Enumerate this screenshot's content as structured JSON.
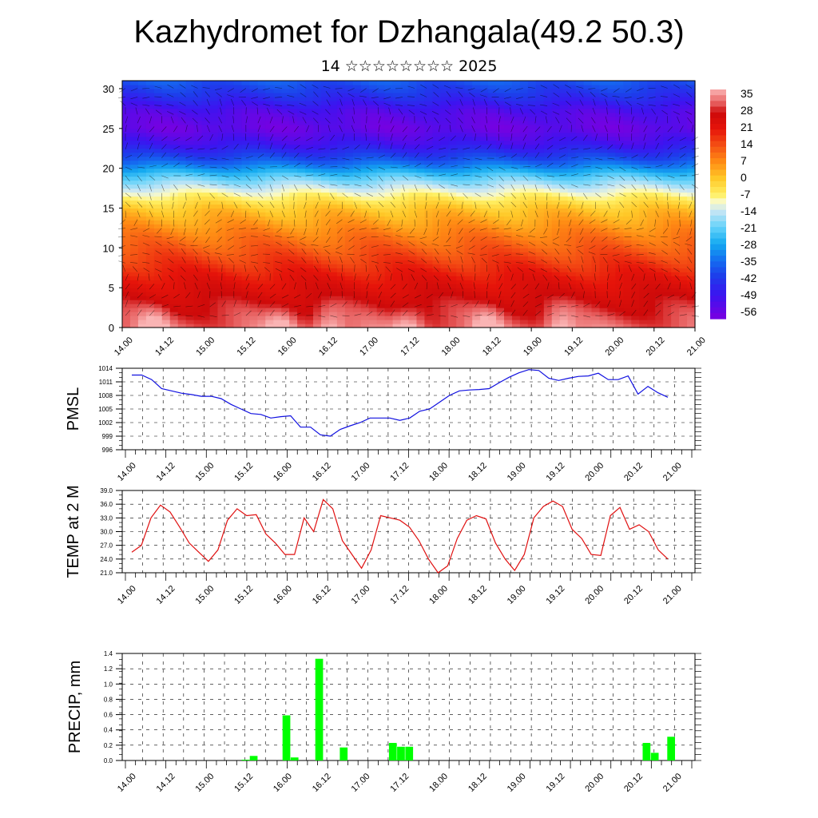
{
  "title": "Kazhydromet for Dzhangala(49.2 50.3)",
  "subtitle": "14 ☆☆☆☆☆☆☆☆ 2025",
  "chart_data": [
    {
      "type": "heatmap",
      "ylim": [
        0,
        31
      ],
      "yticks": [
        "0",
        "5",
        "10",
        "15",
        "20",
        "25",
        "30"
      ],
      "xtick_labels": [
        "14.00",
        "14.12",
        "15.00",
        "15.12",
        "16.00",
        "16.12",
        "17.00",
        "17.12",
        "18.00",
        "18.12",
        "19.00",
        "19.12",
        "20.00",
        "20.12",
        "21.00"
      ],
      "colorbar_labels": [
        "35",
        "28",
        "21",
        "14",
        "7",
        "0",
        "-7",
        "-14",
        "-21",
        "-28",
        "-35",
        "-42",
        "-49",
        "-56"
      ],
      "value_range": [
        -60,
        38
      ],
      "profile_levels": [
        0,
        3,
        6,
        9,
        12,
        15,
        17,
        19,
        21,
        23,
        25,
        27,
        29,
        31
      ],
      "profile_values": [
        33,
        28,
        22,
        15,
        8,
        0,
        -10,
        -22,
        -38,
        -50,
        -57,
        -54,
        -45,
        -38
      ],
      "warm_spots_x": [
        3.5,
        19.5,
        25.5,
        35.5,
        45.5,
        54.5
      ]
    },
    {
      "type": "line",
      "ylabel": "PMSL",
      "ylim": [
        996,
        1014
      ],
      "yticks": [
        "1014",
        "1011",
        "1008",
        "1005",
        "1002",
        "999",
        "996"
      ],
      "xtick_labels": [
        "14.00",
        "14.12",
        "15.00",
        "15.12",
        "16.00",
        "16.12",
        "17.00",
        "17.12",
        "18.00",
        "18.12",
        "19.00",
        "19.12",
        "20.00",
        "20.12",
        "21.00"
      ],
      "series": [
        {
          "color": "#1010e0",
          "values": [
            1012.5,
            1012.5,
            1011.5,
            1009.5,
            1009.0,
            1008.5,
            1008.2,
            1007.8,
            1007.8,
            1007.3,
            1006.0,
            1005.0,
            1004.0,
            1003.8,
            1003.0,
            1003.3,
            1003.5,
            1001.0,
            1001.0,
            999.3,
            999.0,
            1000.5,
            1001.3,
            1002.0,
            1003.0,
            1003.0,
            1003.0,
            1002.5,
            1003.0,
            1004.5,
            1005.0,
            1006.5,
            1008.0,
            1009.0,
            1009.2,
            1009.3,
            1009.5,
            1010.8,
            1012.0,
            1013.0,
            1013.7,
            1013.5,
            1011.8,
            1011.3,
            1011.8,
            1012.2,
            1012.3,
            1012.9,
            1011.5,
            1011.5,
            1012.3,
            1008.3,
            1010.0,
            1008.6,
            1007.6
          ]
        }
      ]
    },
    {
      "type": "line",
      "ylabel": "TEMP at 2 M",
      "ylim": [
        21,
        39
      ],
      "yticks": [
        "39.0",
        "36.0",
        "33.0",
        "30.0",
        "27.0",
        "24.0",
        "21.0"
      ],
      "xtick_labels": [
        "14.00",
        "14.12",
        "15.00",
        "15.12",
        "16.00",
        "16.12",
        "17.00",
        "17.12",
        "18.00",
        "18.12",
        "19.00",
        "19.12",
        "20.00",
        "20.12",
        "21.00"
      ],
      "series": [
        {
          "color": "#e01010",
          "values": [
            25.5,
            27.0,
            33.0,
            35.8,
            34.3,
            31.0,
            27.5,
            25.5,
            23.5,
            26.0,
            32.5,
            35.0,
            33.5,
            33.7,
            29.5,
            27.5,
            25.0,
            25.0,
            33.0,
            30.0,
            37.0,
            35.0,
            28.0,
            25.0,
            22.0,
            26.0,
            33.5,
            33.0,
            32.5,
            31.0,
            28.0,
            24.0,
            21.0,
            22.5,
            28.5,
            32.5,
            33.5,
            32.8,
            27.5,
            24.0,
            21.5,
            25.0,
            33.0,
            35.5,
            36.7,
            35.5,
            30.5,
            28.5,
            25.0,
            24.8,
            33.5,
            35.3,
            30.5,
            31.5,
            30.0,
            26.0,
            24.0
          ]
        }
      ]
    },
    {
      "type": "bar",
      "ylabel": "PRECIP, mm",
      "ylim": [
        0,
        1.4
      ],
      "yticks": [
        "1.4",
        "1.2",
        "1.0",
        "0.8",
        "0.6",
        "0.4",
        "0.2",
        "0.0"
      ],
      "xtick_labels": [
        "14.00",
        "14.12",
        "15.00",
        "15.12",
        "16.00",
        "16.12",
        "17.00",
        "17.12",
        "18.00",
        "18.12",
        "19.00",
        "19.12",
        "20.00",
        "20.12",
        "21.00"
      ],
      "bar_color": "#00ff00",
      "bars": [
        [
          14,
          0.01
        ],
        [
          15,
          0.06
        ],
        [
          19,
          0.59
        ],
        [
          20,
          0.04
        ],
        [
          23,
          1.33
        ],
        [
          26,
          0.17
        ],
        [
          32,
          0.23
        ],
        [
          33,
          0.18
        ],
        [
          34,
          0.18
        ],
        [
          63,
          0.23
        ],
        [
          64,
          0.1
        ],
        [
          66,
          0.31
        ]
      ]
    }
  ]
}
